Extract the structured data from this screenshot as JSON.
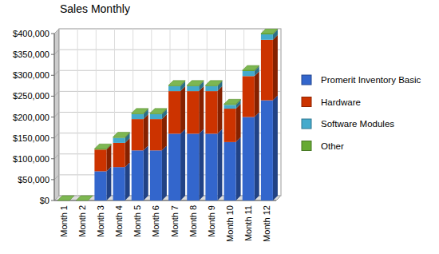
{
  "chart_data": {
    "type": "bar",
    "title": "Sales Monthly",
    "categories": [
      "Month 1",
      "Month 2",
      "Month 3",
      "Month 4",
      "Month 5",
      "Month 6",
      "Month 7",
      "Month 8",
      "Month 9",
      "Month 10",
      "Month 11",
      "Month 12"
    ],
    "series": [
      {
        "name": "Promerit Inventory Basic",
        "color": "#3366cc",
        "values": [
          0,
          0,
          70000,
          80000,
          120000,
          120000,
          160000,
          160000,
          160000,
          140000,
          200000,
          240000
        ]
      },
      {
        "name": "Hardware",
        "color": "#cc3300",
        "values": [
          0,
          0,
          52000,
          58000,
          75000,
          75000,
          102000,
          102000,
          102000,
          80000,
          98000,
          145000
        ]
      },
      {
        "name": "Software Modules",
        "color": "#44aacc",
        "values": [
          0,
          0,
          0,
          12000,
          12000,
          12000,
          12000,
          12000,
          12000,
          9000,
          12000,
          13000
        ]
      },
      {
        "name": "Other",
        "color": "#66aa33",
        "values": [
          0,
          0,
          2000,
          2000,
          2000,
          2000,
          2000,
          2000,
          2000,
          2000,
          2000,
          2000
        ]
      }
    ],
    "ylim": [
      0,
      400000
    ],
    "yticks": [
      {
        "value": 0,
        "label": "$0"
      },
      {
        "value": 50000,
        "label": "$50,000"
      },
      {
        "value": 100000,
        "label": "$100,000"
      },
      {
        "value": 150000,
        "label": "$150,000"
      },
      {
        "value": 200000,
        "label": "$200,000"
      },
      {
        "value": 250000,
        "label": "$250,000"
      },
      {
        "value": 300000,
        "label": "$300,000"
      },
      {
        "value": 350000,
        "label": "$350,000"
      },
      {
        "value": 400000,
        "label": "$400,000"
      }
    ],
    "grid": true,
    "stacked": true,
    "legend": "right"
  }
}
